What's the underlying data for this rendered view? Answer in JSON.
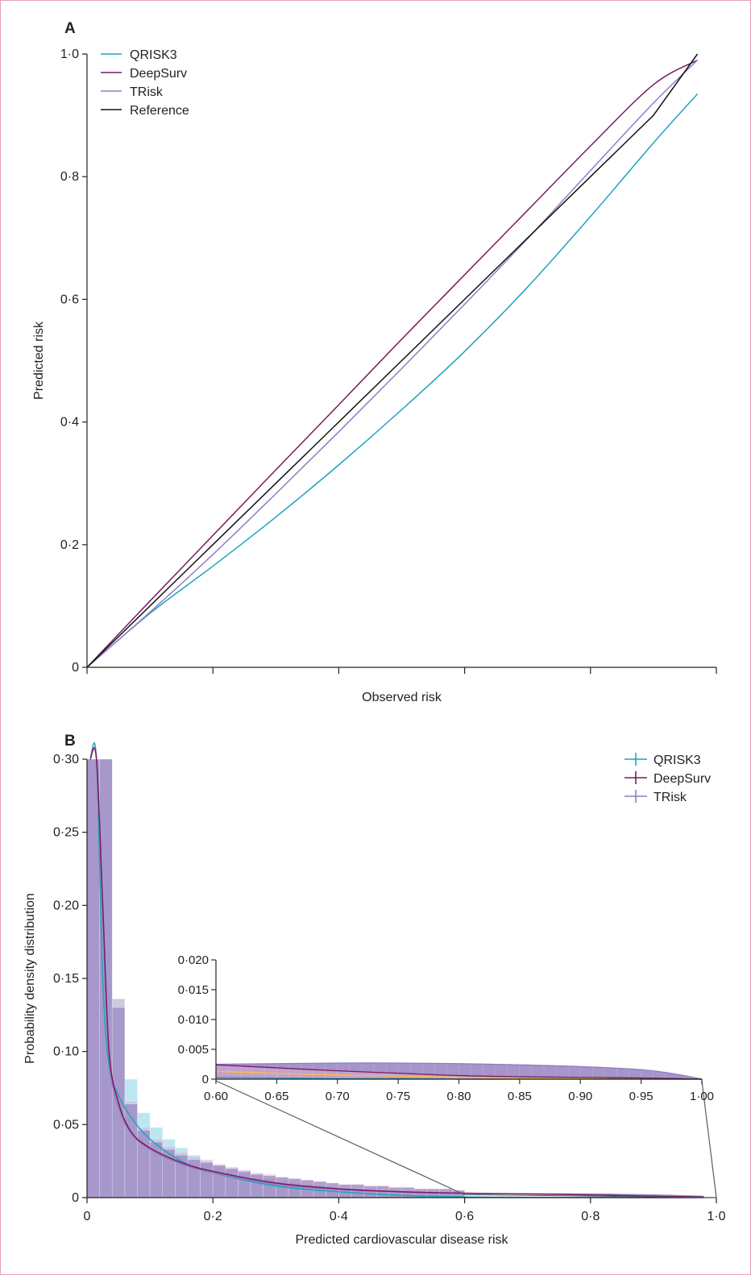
{
  "colors": {
    "qrisk3": "#1fa3bd",
    "deepsurv": "#7b1a5e",
    "trisk": "#8c7fc4",
    "reference": "#111111",
    "qrisk3_hist": "#86d2e6",
    "deepsurv_hist": "#d9a8cf",
    "trisk_hist": "#8870b8",
    "inset_highlight": "#f2c040",
    "connector": "#4d6166"
  },
  "chart_data": [
    {
      "panel": "A",
      "type": "line",
      "xlabel": "Observed risk",
      "ylabel": "Predicted risk",
      "xlim": [
        0,
        1
      ],
      "ylim": [
        0,
        1
      ],
      "x_ticks_labeled": false,
      "y_ticks": [
        "0",
        "0·2",
        "0·4",
        "0·6",
        "0·8",
        "1·0"
      ],
      "grid": false,
      "legend_position": "top-left",
      "x": [
        0,
        0.1,
        0.2,
        0.3,
        0.4,
        0.5,
        0.6,
        0.7,
        0.8,
        0.9,
        0.97
      ],
      "series": [
        {
          "name": "QRISK3",
          "key": "qrisk3",
          "values": [
            0,
            0.088,
            0.165,
            0.245,
            0.33,
            0.42,
            0.515,
            0.62,
            0.735,
            0.855,
            0.935
          ]
        },
        {
          "name": "DeepSurv",
          "key": "deepsurv",
          "values": [
            0,
            0.108,
            0.215,
            0.322,
            0.428,
            0.535,
            0.64,
            0.745,
            0.85,
            0.95,
            0.99
          ]
        },
        {
          "name": "TRisk",
          "key": "trisk",
          "values": [
            0,
            0.09,
            0.184,
            0.283,
            0.384,
            0.487,
            0.592,
            0.699,
            0.81,
            0.92,
            0.99
          ]
        },
        {
          "name": "Reference",
          "key": "reference",
          "values": [
            0,
            0.1,
            0.2,
            0.3,
            0.4,
            0.5,
            0.6,
            0.7,
            0.8,
            0.9,
            1.0
          ]
        }
      ]
    },
    {
      "panel": "B",
      "type": "area",
      "xlabel": "Predicted cardiovascular disease risk",
      "ylabel": "Probability density distribution",
      "xlim": [
        0,
        1
      ],
      "ylim": [
        0,
        0.3
      ],
      "x_ticks": [
        "0",
        "0·2",
        "0·4",
        "0·6",
        "0·8",
        "1·0"
      ],
      "y_ticks": [
        "0",
        "0·05",
        "0·10",
        "0·15",
        "0·20",
        "0·25",
        "0·30"
      ],
      "grid": false,
      "legend_position": "top-right",
      "x": [
        0.005,
        0.015,
        0.025,
        0.035,
        0.05,
        0.07,
        0.1,
        0.15,
        0.2,
        0.3,
        0.4,
        0.5,
        0.6,
        0.7,
        0.8,
        0.9,
        0.98
      ],
      "series": [
        {
          "name": "QRISK3",
          "key": "qrisk3",
          "values": [
            0.3,
            0.3,
            0.15,
            0.09,
            0.07,
            0.055,
            0.04,
            0.025,
            0.017,
            0.008,
            0.004,
            0.0015,
            0.0005,
            0.0002,
            0.0001,
            0.0,
            0.0
          ]
        },
        {
          "name": "DeepSurv",
          "key": "deepsurv",
          "values": [
            0.3,
            0.3,
            0.2,
            0.1,
            0.065,
            0.045,
            0.034,
            0.024,
            0.018,
            0.01,
            0.006,
            0.004,
            0.003,
            0.0025,
            0.0018,
            0.001,
            0.0005
          ]
        },
        {
          "name": "TRisk",
          "key": "trisk",
          "values": [
            0.3,
            0.3,
            0.19,
            0.095,
            0.062,
            0.044,
            0.033,
            0.023,
            0.017,
            0.009,
            0.0055,
            0.0038,
            0.0028,
            0.0026,
            0.0024,
            0.0018,
            0.0008
          ]
        }
      ],
      "histogram": {
        "bin_width": 0.02,
        "qrisk3": [
          0.3,
          0.3,
          0.136,
          0.081,
          0.058,
          0.048,
          0.04,
          0.034,
          0.029,
          0.025,
          0.022,
          0.019,
          0.017,
          0.015,
          0.013,
          0.011,
          0.01,
          0.009,
          0.008,
          0.007,
          0.006,
          0.006,
          0.005,
          0.005,
          0.004,
          0.004,
          0.003,
          0.003,
          0.003,
          0.002
        ],
        "deepsurv": [
          0.3,
          0.3,
          0.136,
          0.066,
          0.048,
          0.04,
          0.035,
          0.031,
          0.028,
          0.026,
          0.023,
          0.021,
          0.019,
          0.017,
          0.016,
          0.014,
          0.013,
          0.012,
          0.011,
          0.01,
          0.009,
          0.009,
          0.008,
          0.008,
          0.007,
          0.007,
          0.006,
          0.006,
          0.006,
          0.005
        ],
        "trisk": [
          0.3,
          0.3,
          0.13,
          0.064,
          0.046,
          0.038,
          0.033,
          0.029,
          0.026,
          0.024,
          0.022,
          0.02,
          0.018,
          0.016,
          0.015,
          0.014,
          0.013,
          0.012,
          0.011,
          0.01,
          0.009,
          0.009,
          0.008,
          0.008,
          0.007,
          0.007,
          0.006,
          0.006,
          0.006,
          0.005
        ]
      },
      "inset": {
        "xlim": [
          0.6,
          1.0
        ],
        "ylim": [
          0,
          0.02
        ],
        "x_ticks": [
          "0·60",
          "0·65",
          "0·70",
          "0·75",
          "0·80",
          "0·85",
          "0·90",
          "0·95",
          "1·00"
        ],
        "y_ticks": [
          "0",
          "0·005",
          "0·010",
          "0·015",
          "0·020"
        ],
        "x": [
          0.6,
          0.65,
          0.7,
          0.75,
          0.8,
          0.85,
          0.9,
          0.95,
          0.98,
          1.0
        ],
        "series": [
          {
            "name": "QRISK3",
            "key": "qrisk3",
            "values": [
              0.0003,
              0.0002,
              0.0001,
              0.0001,
              0.0,
              0.0,
              0.0,
              0.0,
              0.0,
              0.0
            ]
          },
          {
            "name": "DeepSurv",
            "key": "deepsurv",
            "values": [
              0.0024,
              0.0019,
              0.0014,
              0.001,
              0.0006,
              0.0004,
              0.0003,
              0.0002,
              0.0001,
              0.0
            ]
          },
          {
            "name": "TRisk",
            "key": "trisk",
            "values": [
              0.0025,
              0.0026,
              0.0027,
              0.0027,
              0.0026,
              0.0024,
              0.0021,
              0.0016,
              0.0008,
              0.0
            ]
          }
        ]
      }
    }
  ],
  "panel_labels": {
    "a": "A",
    "b": "B"
  }
}
